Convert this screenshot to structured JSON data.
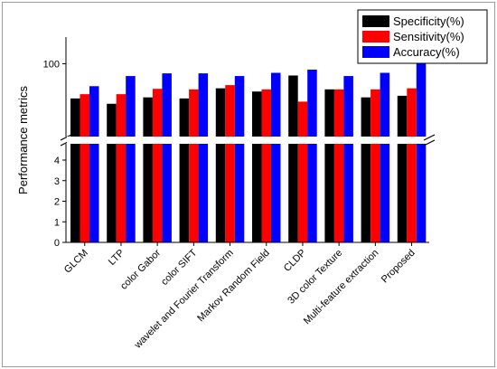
{
  "chart_data": {
    "type": "bar",
    "ylabel": "Performance metrics",
    "xlabel": "",
    "legend_position": "top-right",
    "axis_break": true,
    "lower_segment": {
      "ylim": [
        0,
        4
      ],
      "ticks": [
        "0",
        "1",
        "2",
        "3",
        "4"
      ]
    },
    "upper_segment": {
      "ylim": [
        85,
        105
      ],
      "ticks": [
        "100"
      ]
    },
    "categories": [
      "GLCM",
      "LTP",
      "color Gabor",
      "color SIFT",
      "wavelet and Fourier Transform",
      "Markov Random Field",
      "CLDP",
      "3D color Texture",
      "Multi-feature extraction",
      "Proposed"
    ],
    "series": [
      {
        "name": "Specificity(%)",
        "color": "#000000",
        "values": [
          93.5,
          92.5,
          93.7,
          93.5,
          95.4,
          94.8,
          97.8,
          95.2,
          93.7,
          94.0
        ]
      },
      {
        "name": "Sensitivity(%)",
        "color": "#ff0000",
        "values": [
          94.3,
          94.3,
          95.3,
          95.2,
          96.0,
          95.2,
          92.9,
          95.2,
          95.2,
          95.4
        ]
      },
      {
        "name": "Accuracy(%)",
        "color": "#0000ff",
        "values": [
          95.8,
          97.7,
          98.2,
          98.2,
          97.7,
          98.3,
          98.9,
          97.7,
          98.3,
          100.7
        ]
      }
    ]
  }
}
